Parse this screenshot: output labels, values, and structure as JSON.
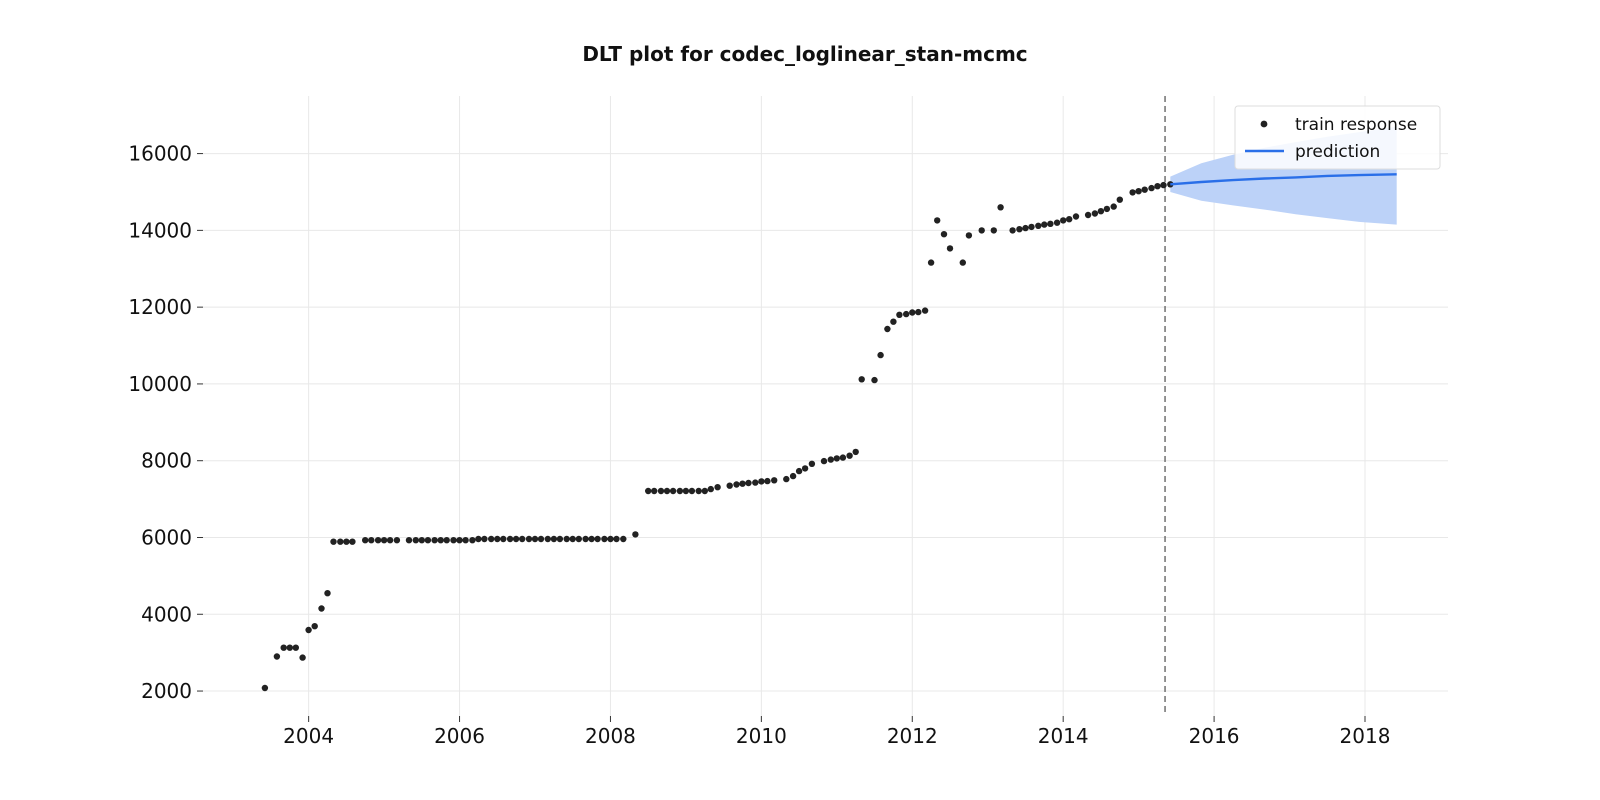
{
  "chart_data": {
    "type": "scatter",
    "title": "DLT plot for codec_loglinear_stan-mcmc",
    "xlabel": "",
    "ylabel": "",
    "xlim": [
      2002.6,
      2019.1
    ],
    "ylim": [
      1350,
      17500
    ],
    "x_ticks": [
      2004,
      2006,
      2008,
      2010,
      2012,
      2014,
      2016,
      2018
    ],
    "x_tick_labels": [
      "2004",
      "2006",
      "2008",
      "2010",
      "2012",
      "2014",
      "2016",
      "2018"
    ],
    "y_ticks": [
      2000,
      4000,
      6000,
      8000,
      10000,
      12000,
      14000,
      16000
    ],
    "y_tick_labels": [
      "2000",
      "4000",
      "6000",
      "8000",
      "10000",
      "12000",
      "14000",
      "16000"
    ],
    "grid": true,
    "legend_position": "top-right",
    "train_end_x": 2015.35,
    "colors": {
      "points": "#222222",
      "prediction": "#2a6fe8",
      "band": "#bcd2f8",
      "cutoff": "#666666",
      "grid": "#e8e8e8"
    },
    "series": [
      {
        "name": "train response",
        "kind": "scatter",
        "x": [
          2003.42,
          2003.58,
          2003.67,
          2003.75,
          2003.83,
          2003.92,
          2004.0,
          2004.08,
          2004.17,
          2004.25,
          2004.33,
          2004.42,
          2004.5,
          2004.58,
          2004.75,
          2004.83,
          2004.92,
          2005.0,
          2005.08,
          2005.17,
          2005.33,
          2005.42,
          2005.5,
          2005.58,
          2005.67,
          2005.75,
          2005.83,
          2005.92,
          2006.0,
          2006.08,
          2006.17,
          2006.25,
          2006.33,
          2006.42,
          2006.5,
          2006.58,
          2006.67,
          2006.75,
          2006.83,
          2006.92,
          2007.0,
          2007.08,
          2007.17,
          2007.25,
          2007.33,
          2007.42,
          2007.5,
          2007.58,
          2007.67,
          2007.75,
          2007.83,
          2007.92,
          2008.0,
          2008.08,
          2008.17,
          2008.33,
          2008.5,
          2008.58,
          2008.67,
          2008.75,
          2008.83,
          2008.92,
          2009.0,
          2009.08,
          2009.17,
          2009.25,
          2009.33,
          2009.42,
          2009.58,
          2009.67,
          2009.75,
          2009.83,
          2009.92,
          2010.0,
          2010.08,
          2010.17,
          2010.33,
          2010.42,
          2010.5,
          2010.58,
          2010.67,
          2010.83,
          2010.92,
          2011.0,
          2011.08,
          2011.17,
          2011.25,
          2011.33,
          2011.5,
          2011.58,
          2011.67,
          2011.75,
          2011.83,
          2011.92,
          2012.0,
          2012.08,
          2012.17,
          2012.25,
          2012.33,
          2012.42,
          2012.5,
          2012.67,
          2012.75,
          2012.92,
          2013.08,
          2013.17,
          2013.33,
          2013.42,
          2013.5,
          2013.58,
          2013.67,
          2013.75,
          2013.83,
          2013.92,
          2014.0,
          2014.08,
          2014.17,
          2014.33,
          2014.42,
          2014.5,
          2014.58,
          2014.67,
          2014.75,
          2014.92,
          2015.0,
          2015.08,
          2015.17,
          2015.25,
          2015.33,
          2015.42
        ],
        "y": [
          2080,
          2900,
          3130,
          3130,
          3130,
          2870,
          3590,
          3690,
          4150,
          4550,
          5890,
          5890,
          5890,
          5890,
          5930,
          5930,
          5930,
          5930,
          5930,
          5930,
          5930,
          5930,
          5930,
          5930,
          5930,
          5930,
          5930,
          5930,
          5930,
          5930,
          5930,
          5960,
          5960,
          5960,
          5960,
          5960,
          5960,
          5960,
          5960,
          5960,
          5960,
          5960,
          5960,
          5960,
          5960,
          5960,
          5960,
          5960,
          5960,
          5960,
          5960,
          5960,
          5960,
          5960,
          5960,
          6080,
          7210,
          7210,
          7210,
          7210,
          7210,
          7210,
          7210,
          7210,
          7210,
          7210,
          7260,
          7310,
          7350,
          7380,
          7400,
          7420,
          7430,
          7460,
          7470,
          7490,
          7520,
          7600,
          7730,
          7800,
          7920,
          7990,
          8030,
          8060,
          8080,
          8130,
          8230,
          10120,
          10100,
          10750,
          11430,
          11620,
          11800,
          11820,
          11860,
          11870,
          11910,
          13160,
          14260,
          13900,
          13530,
          13160,
          13870,
          14000,
          14000,
          14600,
          14000,
          14030,
          14060,
          14090,
          14120,
          14150,
          14170,
          14200,
          14260,
          14290,
          14360,
          14400,
          14440,
          14500,
          14560,
          14620,
          14800,
          14990,
          15020,
          15060,
          15100,
          15150,
          15180,
          15200
        ]
      },
      {
        "name": "prediction",
        "kind": "line",
        "x": [
          2015.42,
          2015.83,
          2016.25,
          2016.67,
          2017.08,
          2017.5,
          2017.92,
          2018.42
        ],
        "y": [
          15200,
          15260,
          15310,
          15350,
          15380,
          15420,
          15440,
          15460
        ],
        "lower": [
          15000,
          14770,
          14650,
          14540,
          14420,
          14320,
          14220,
          14150
        ],
        "upper": [
          15400,
          15750,
          15970,
          16150,
          16300,
          16440,
          16560,
          16700
        ]
      }
    ]
  }
}
